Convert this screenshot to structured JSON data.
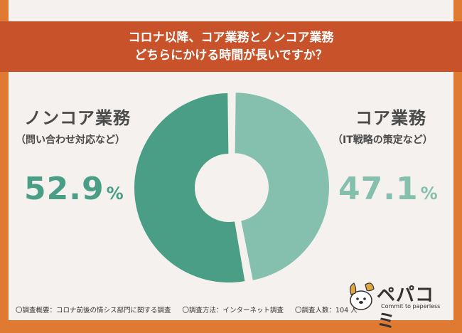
{
  "banner": {
    "line1": "コロナ以降、コア業務とノンコア業務",
    "line2": "どちらにかける時間が長いですか？"
  },
  "chart_data": {
    "type": "pie",
    "donut": true,
    "categories": [
      "ノンコア業務",
      "コア業務"
    ],
    "values": [
      52.9,
      47.1
    ],
    "labels": [
      {
        "title": "ノンコア業務",
        "subtitle": "（問い合わせ対応など）",
        "value_text": "52.9",
        "unit": "%"
      },
      {
        "title": "コア業務",
        "subtitle": "（IT戦略の策定など）",
        "value_text": "47.1",
        "unit": "%"
      }
    ],
    "colors": [
      "#4a9e86",
      "#85bfae"
    ],
    "exploded": "コア業務"
  },
  "footnote": {
    "overview": "〇調査概要：コロナ前後の情シス部門に関する調査",
    "method": "〇調査方法：インターネット調査",
    "count": "〇調査人数：104 人"
  },
  "logo": {
    "name": "ペパコミ",
    "tagline": "Commit to paperless"
  },
  "colors": {
    "frame": "#e07a32",
    "banner": "#c8532a",
    "background": "#f4f1ee",
    "text": "#4a4a4a"
  }
}
